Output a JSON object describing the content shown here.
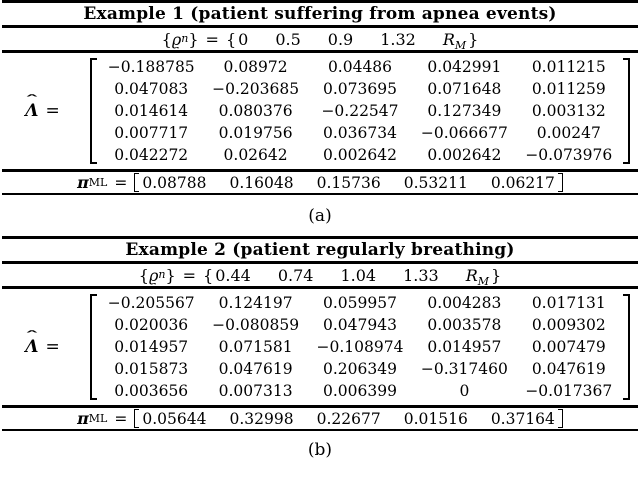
{
  "figure": {
    "background_color": "#ffffff",
    "text_color": "#000000",
    "tables": [
      {
        "caption": "(a)",
        "title": "Example 1 (patient suffering from apnea events)",
        "rho": {
          "open_brace": "{",
          "close_brace": "}",
          "symbol": "ϱ",
          "symbol_sub": "n",
          "equals": "=",
          "values": [
            "0",
            "0.5",
            "0.9",
            "1.32"
          ],
          "last_symbol": {
            "base": "R",
            "sub": "M"
          }
        },
        "lambda": {
          "base": "Λ",
          "hat": "ˆ",
          "equals": "="
        },
        "matrix": [
          [
            "−0.188785",
            "0.08972",
            "0.04486",
            "0.042991",
            "0.011215"
          ],
          [
            "0.047083",
            "−0.203685",
            "0.073695",
            "0.071648",
            "0.011259"
          ],
          [
            "0.014614",
            "0.080376",
            "−0.22547",
            "0.127349",
            "0.003132"
          ],
          [
            "0.007717",
            "0.019756",
            "0.036734",
            "−0.066677",
            "0.00247"
          ],
          [
            "0.042272",
            "0.02642",
            "0.002642",
            "0.002642",
            "−0.073976"
          ]
        ],
        "pi": {
          "base": "π",
          "sub": "ML",
          "equals": "=",
          "values": [
            "0.08788",
            "0.16048",
            "0.15736",
            "0.53211",
            "0.06217"
          ]
        }
      },
      {
        "caption": "(b)",
        "title": "Example 2 (patient regularly breathing)",
        "rho": {
          "open_brace": "{",
          "close_brace": "}",
          "symbol": "ϱ",
          "symbol_sub": "n",
          "equals": "=",
          "values": [
            "0.44",
            "0.74",
            "1.04",
            "1.33"
          ],
          "last_symbol": {
            "base": "R",
            "sub": "M"
          }
        },
        "lambda": {
          "base": "Λ",
          "hat": "ˆ",
          "equals": "="
        },
        "matrix": [
          [
            "−0.205567",
            "0.124197",
            "0.059957",
            "0.004283",
            "0.017131"
          ],
          [
            "0.020036",
            "−0.080859",
            "0.047943",
            "0.003578",
            "0.009302"
          ],
          [
            "0.014957",
            "0.071581",
            "−0.108974",
            "0.014957",
            "0.007479"
          ],
          [
            "0.015873",
            "0.047619",
            "0.206349",
            "−0.317460",
            "0.047619"
          ],
          [
            "0.003656",
            "0.007313",
            "0.006399",
            "0",
            "−0.017367"
          ]
        ],
        "pi": {
          "base": "π",
          "sub": "ML",
          "equals": "=",
          "values": [
            "0.05644",
            "0.32998",
            "0.22677",
            "0.01516",
            "0.37164"
          ]
        }
      }
    ]
  }
}
